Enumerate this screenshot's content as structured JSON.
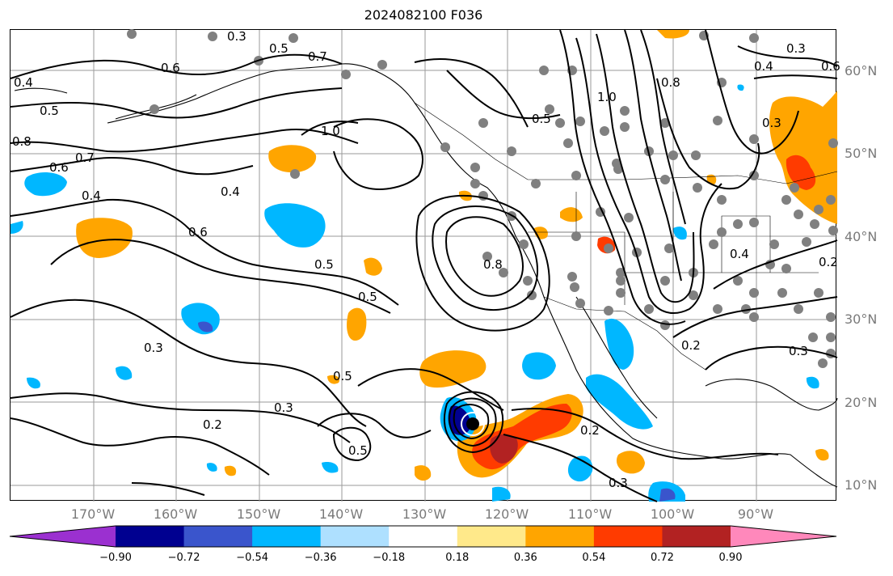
{
  "title": "2024082100 F036",
  "lat_labels": [
    "60°N",
    "50°N",
    "40°N",
    "30°N",
    "20°N",
    "10°N"
  ],
  "lon_labels": [
    "170°W",
    "160°W",
    "150°W",
    "140°W",
    "130°W",
    "120°W",
    "110°W",
    "100°W",
    "90°W"
  ],
  "colorbar": {
    "ticks": [
      "−0.90",
      "−0.72",
      "−0.54",
      "−0.36",
      "−0.18",
      "0.18",
      "0.36",
      "0.54",
      "0.72",
      "0.90"
    ],
    "colors": [
      "#9b30d0",
      "#000090",
      "#3a55cc",
      "#00b7ff",
      "#aee0ff",
      "#ffffff",
      "#ffe98a",
      "#ffa500",
      "#ff3b00",
      "#b22222",
      "#ff88bb"
    ]
  },
  "contour_labels": [
    "0.3",
    "0.5",
    "0.7",
    "0.6",
    "0.4",
    "0.5",
    "0.8",
    "0.6",
    "0.7",
    "0.4",
    "1.0",
    "0.4",
    "0.6",
    "0.5",
    "0.5",
    "0.3",
    "0.5",
    "0.2",
    "0.3",
    "0.5",
    "0.8",
    "0.5",
    "1.0",
    "0.8",
    "0.4",
    "0.3",
    "0.4",
    "0.2",
    "0.3",
    "0.3",
    "0.2",
    "0.2",
    "0.3",
    "0.6"
  ]
}
